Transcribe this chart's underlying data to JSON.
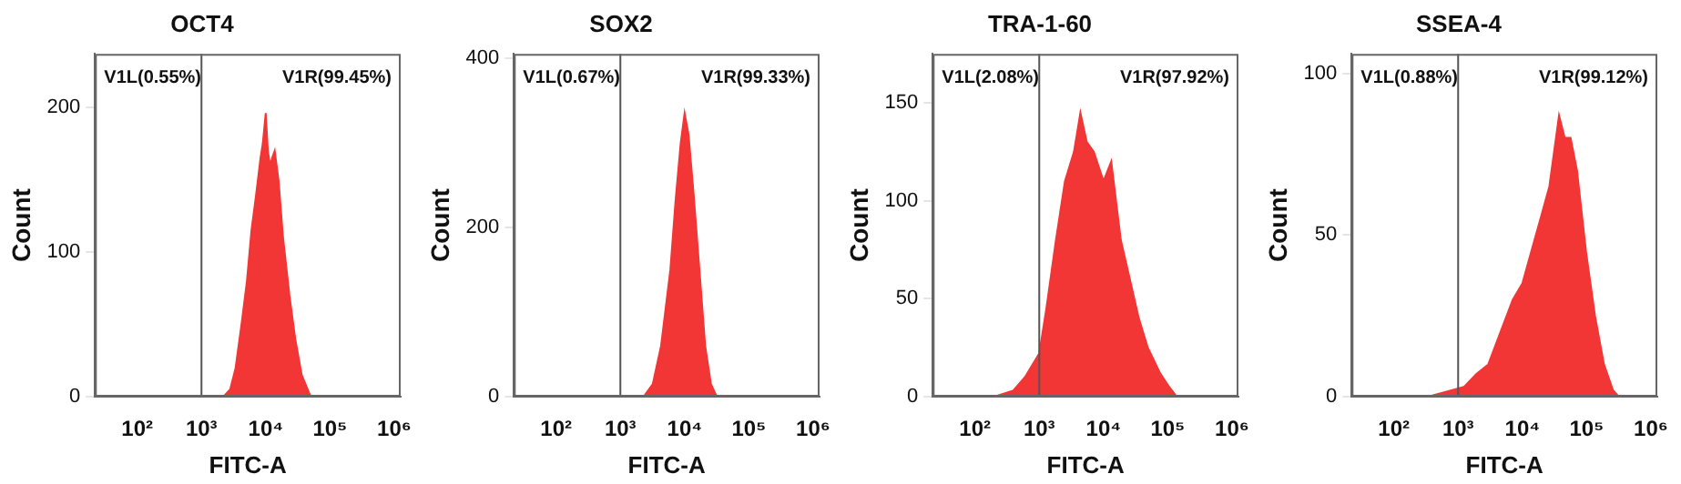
{
  "chart_data": [
    {
      "type": "area",
      "title": "OCT4",
      "xlabel": "FITC-A",
      "ylabel": "Count",
      "log": "x",
      "grid": false,
      "color": "#f23535",
      "x": [
        2200,
        2800,
        3400,
        4200,
        5100,
        6000,
        7100,
        8300,
        9000,
        10000,
        10800,
        11700,
        12600,
        13800,
        15800,
        18600,
        23400,
        28800,
        36300,
        50000
      ],
      "values": [
        0,
        5,
        20,
        50,
        80,
        115,
        140,
        165,
        175,
        196,
        170,
        160,
        165,
        170,
        150,
        110,
        70,
        40,
        15,
        0
      ],
      "xlim": [
        22,
        1260000
      ],
      "xticks": [
        {
          "value": 100,
          "label": "10²"
        },
        {
          "value": 1000,
          "label": "10³"
        },
        {
          "value": 10000,
          "label": "10⁴"
        },
        {
          "value": 100000,
          "label": "10⁵"
        },
        {
          "value": 1000000,
          "label": "10⁶"
        }
      ],
      "ylim": [
        0,
        237
      ],
      "yticks": [
        0,
        100,
        200
      ],
      "ref_lines": [
        {
          "axis": "x",
          "value": 1000,
          "color": "#555555"
        }
      ],
      "annotations": [
        "V1L(0.55%)",
        "V1R(99.45%)"
      ]
    },
    {
      "type": "area",
      "title": "SOX2",
      "xlabel": "FITC-A",
      "ylabel": "Count",
      "log": "x",
      "grid": false,
      "color": "#f23535",
      "x": [
        2300,
        3200,
        4300,
        6000,
        7200,
        8700,
        10000,
        11500,
        13800,
        17000,
        20900,
        25700,
        31600
      ],
      "values": [
        0,
        15,
        60,
        150,
        230,
        300,
        335,
        310,
        240,
        150,
        60,
        15,
        0
      ],
      "xlim": [
        22,
        1260000
      ],
      "xticks": [
        {
          "value": 100,
          "label": "10²"
        },
        {
          "value": 1000,
          "label": "10³"
        },
        {
          "value": 10000,
          "label": "10⁴"
        },
        {
          "value": 100000,
          "label": "10⁵"
        },
        {
          "value": 1000000,
          "label": "10⁶"
        }
      ],
      "ylim": [
        0,
        405
      ],
      "yticks": [
        0,
        200,
        400
      ],
      "ref_lines": [
        {
          "axis": "x",
          "value": 1000,
          "color": "#555555"
        }
      ],
      "annotations": [
        "V1L(0.67%)",
        "V1R(99.33%)"
      ]
    },
    {
      "type": "area",
      "title": "TRA-1-60",
      "xlabel": "FITC-A",
      "ylabel": "Count",
      "log": "x",
      "grid": false,
      "color": "#f23535",
      "x": [
        200,
        390,
        600,
        1000,
        1290,
        1820,
        2510,
        3470,
        4370,
        5500,
        7080,
        10000,
        13200,
        18600,
        25700,
        35500,
        49000,
        75900,
        105000,
        138000
      ],
      "values": [
        0,
        3,
        10,
        22,
        45,
        80,
        110,
        125,
        145,
        130,
        125,
        110,
        120,
        80,
        60,
        40,
        25,
        12,
        5,
        0
      ],
      "xlim": [
        22,
        1260000
      ],
      "xticks": [
        {
          "value": 100,
          "label": "10²"
        },
        {
          "value": 1000,
          "label": "10³"
        },
        {
          "value": 10000,
          "label": "10⁴"
        },
        {
          "value": 100000,
          "label": "10⁵"
        },
        {
          "value": 1000000,
          "label": "10⁶"
        }
      ],
      "ylim": [
        0,
        175
      ],
      "yticks": [
        0,
        50,
        100,
        150
      ],
      "ref_lines": [
        {
          "axis": "x",
          "value": 1000,
          "color": "#555555"
        }
      ],
      "annotations": [
        "V1L(2.08%)",
        "V1R(97.92%)"
      ]
    },
    {
      "type": "area",
      "title": "SSEA-4",
      "xlabel": "FITC-A",
      "ylabel": "Count",
      "log": "x",
      "grid": false,
      "color": "#f23535",
      "x": [
        340,
        520,
        790,
        1230,
        1910,
        2950,
        4570,
        7080,
        10000,
        13800,
        19100,
        26300,
        37200,
        45700,
        56200,
        70800,
        97700,
        135000,
        186000,
        257000,
        316000
      ],
      "values": [
        0,
        1,
        2,
        3,
        7,
        10,
        20,
        30,
        35,
        45,
        55,
        65,
        87,
        80,
        80,
        70,
        45,
        25,
        10,
        2,
        0
      ],
      "xlim": [
        22,
        1260000
      ],
      "xticks": [
        {
          "value": 100,
          "label": "10²"
        },
        {
          "value": 1000,
          "label": "10³"
        },
        {
          "value": 10000,
          "label": "10⁴"
        },
        {
          "value": 100000,
          "label": "10⁵"
        },
        {
          "value": 1000000,
          "label": "10⁶"
        }
      ],
      "ylim": [
        0,
        106
      ],
      "yticks": [
        0,
        50,
        100
      ],
      "ref_lines": [
        {
          "axis": "x",
          "value": 1000,
          "color": "#555555"
        }
      ],
      "annotations": [
        "V1L(0.88%)",
        "V1R(99.12%)"
      ]
    }
  ]
}
